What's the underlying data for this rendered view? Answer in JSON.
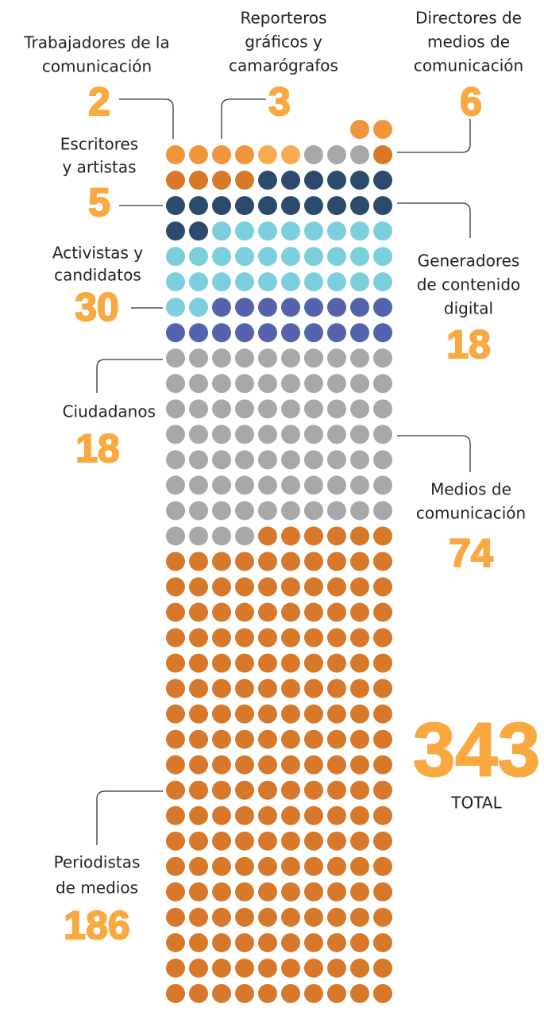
{
  "chart_data": {
    "type": "waffle",
    "columns": 10,
    "categories": [
      {
        "label": [
          "Directores de",
          "medios de",
          "comunicación"
        ],
        "value": 6,
        "color": "#f0953b"
      },
      {
        "label": [
          "Trabajadores de la",
          "comunicación"
        ],
        "value": 2,
        "color": "#f9ac4f"
      },
      {
        "label": [
          "Reporteros",
          "gráficos y",
          "camarógrafos"
        ],
        "value": 3,
        "color": "#a8a8ab"
      },
      {
        "label": [
          "Escritores",
          "y artistas"
        ],
        "value": 5,
        "color": "#d8782b"
      },
      {
        "label": [
          "Generadores",
          "de contenido",
          "digital"
        ],
        "value": 18,
        "color": "#2c4a6b"
      },
      {
        "label": [
          "Activistas y",
          "candidatos"
        ],
        "value": 30,
        "color": "#7ccfdc"
      },
      {
        "label": [
          "Ciudadanos"
        ],
        "value": 18,
        "color": "#5563ad"
      },
      {
        "label": [
          "Medios de",
          "comunicación"
        ],
        "value": 74,
        "color": "#a8a8ab"
      },
      {
        "label": [
          "Periodistas",
          "de medios"
        ],
        "value": 186,
        "color": "#d8782b"
      }
    ],
    "total": {
      "value": 343,
      "label": "TOTAL"
    }
  }
}
